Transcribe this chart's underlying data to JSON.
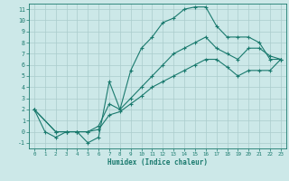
{
  "xlabel": "Humidex (Indice chaleur)",
  "bg_color": "#cce8e8",
  "grid_color": "#aacccc",
  "line_color": "#1a7a6e",
  "xlim": [
    -0.5,
    23.5
  ],
  "ylim": [
    -1.5,
    11.5
  ],
  "xticks": [
    0,
    1,
    2,
    3,
    4,
    5,
    6,
    7,
    8,
    9,
    10,
    11,
    12,
    13,
    14,
    15,
    16,
    17,
    18,
    19,
    20,
    21,
    22,
    23
  ],
  "yticks": [
    -1,
    0,
    1,
    2,
    3,
    4,
    5,
    6,
    7,
    8,
    9,
    10,
    11
  ],
  "curve1_x": [
    0,
    1,
    2,
    3,
    4,
    5,
    6,
    7,
    8,
    9,
    10,
    11,
    12,
    13,
    14,
    15,
    16,
    17,
    18,
    19,
    20,
    21,
    22,
    23
  ],
  "curve1_y": [
    2,
    0,
    -0.5,
    0,
    0,
    -1,
    -0.5,
    4.5,
    2.0,
    5.5,
    7.5,
    8.5,
    9.8,
    10.2,
    11.0,
    11.2,
    11.2,
    9.5,
    8.5,
    8.5,
    8.5,
    8.0,
    6.5,
    6.5
  ],
  "curve2_x": [
    0,
    2,
    3,
    4,
    5,
    6,
    7,
    8,
    9,
    10,
    11,
    12,
    13,
    14,
    15,
    16,
    17,
    18,
    19,
    20,
    21,
    22,
    23
  ],
  "curve2_y": [
    2,
    0,
    0,
    0,
    0,
    0.5,
    2.5,
    2.0,
    3.0,
    4.0,
    5.0,
    6.0,
    7.0,
    7.5,
    8.0,
    8.5,
    7.5,
    7.0,
    6.5,
    7.5,
    7.5,
    6.8,
    6.5
  ],
  "curve3_x": [
    0,
    2,
    3,
    4,
    5,
    6,
    7,
    8,
    9,
    10,
    11,
    12,
    13,
    14,
    15,
    16,
    17,
    18,
    19,
    20,
    21,
    22,
    23
  ],
  "curve3_y": [
    2,
    0,
    0,
    0,
    0,
    0.2,
    1.5,
    1.8,
    2.5,
    3.2,
    4.0,
    4.5,
    5.0,
    5.5,
    6.0,
    6.5,
    6.5,
    5.8,
    5.0,
    5.5,
    5.5,
    5.5,
    6.5
  ]
}
